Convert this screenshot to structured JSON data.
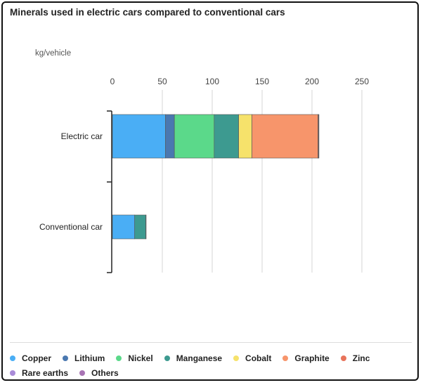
{
  "chart_data": {
    "type": "bar",
    "orientation": "horizontal",
    "stacked": true,
    "title": "Minerals used in electric cars compared to conventional cars",
    "unit_label": "kg/vehicle",
    "xlim": [
      0,
      250
    ],
    "xticks": [
      0,
      50,
      100,
      150,
      200,
      250
    ],
    "grid": true,
    "legend_position": "bottom",
    "categories": [
      "Electric car",
      "Conventional car"
    ],
    "series": [
      {
        "name": "Copper",
        "color": "#4aaef5",
        "values": [
          53.2,
          22.3
        ]
      },
      {
        "name": "Lithium",
        "color": "#4a78b0",
        "values": [
          8.9,
          0
        ]
      },
      {
        "name": "Nickel",
        "color": "#5bd98a",
        "values": [
          39.9,
          0
        ]
      },
      {
        "name": "Manganese",
        "color": "#3d9a90",
        "values": [
          24.5,
          11.2
        ]
      },
      {
        "name": "Cobalt",
        "color": "#f6e26b",
        "values": [
          13.3,
          0
        ]
      },
      {
        "name": "Graphite",
        "color": "#f7956b",
        "values": [
          66.3,
          0
        ]
      },
      {
        "name": "Zinc",
        "color": "#e8735a",
        "values": [
          0.1,
          0
        ]
      },
      {
        "name": "Rare earths",
        "color": "#a98bd8",
        "values": [
          0.5,
          0
        ]
      },
      {
        "name": "Others",
        "color": "#a874b4",
        "values": [
          0.3,
          0.3
        ]
      }
    ]
  }
}
